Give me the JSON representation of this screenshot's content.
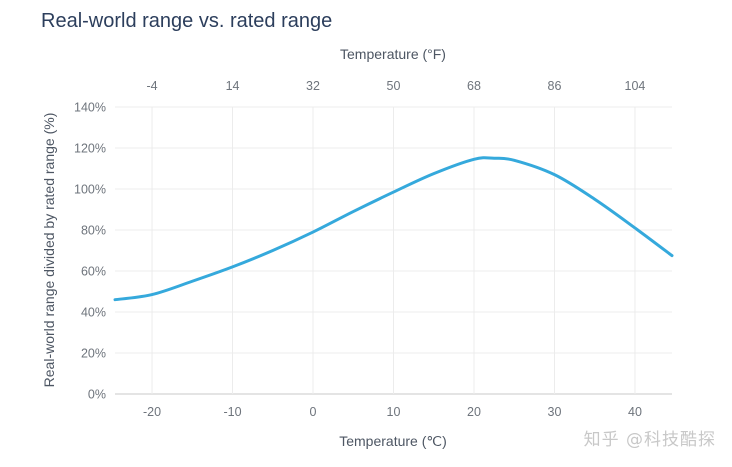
{
  "chart_data": {
    "type": "line",
    "title": "Real-world range vs. rated range",
    "xlabel": "Temperature (℃)",
    "x2label": "Temperature (°F)",
    "ylabel": "Real-world range divided by rated range (%)",
    "xlim": [
      -24.6,
      44.6
    ],
    "ylim": [
      0,
      140
    ],
    "grid": true,
    "x_ticks": [
      -20,
      -10,
      0,
      10,
      20,
      30,
      40
    ],
    "x_tick_labels": [
      "-20",
      "-10",
      "0",
      "10",
      "20",
      "30",
      "40"
    ],
    "x2_tick_labels": [
      "-4",
      "14",
      "32",
      "50",
      "68",
      "86",
      "104"
    ],
    "y_ticks": [
      0,
      20,
      40,
      60,
      80,
      100,
      120,
      140
    ],
    "y_tick_labels": [
      "0%",
      "20%",
      "40%",
      "60%",
      "80%",
      "100%",
      "120%",
      "140%"
    ],
    "series": [
      {
        "name": "Real-world range / rated range",
        "color": "#35a9dc",
        "x": [
          -24.6,
          -20,
          -15,
          -10,
          -5,
          0,
          5,
          10,
          15,
          20,
          22.5,
          25,
          30,
          35,
          40,
          44.6
        ],
        "y": [
          46,
          48.5,
          55,
          62,
          70,
          79,
          89,
          98.5,
          107.5,
          114.5,
          115,
          114,
          107,
          95,
          81,
          67.5
        ]
      }
    ]
  },
  "watermark": "知乎 @科技酷探"
}
